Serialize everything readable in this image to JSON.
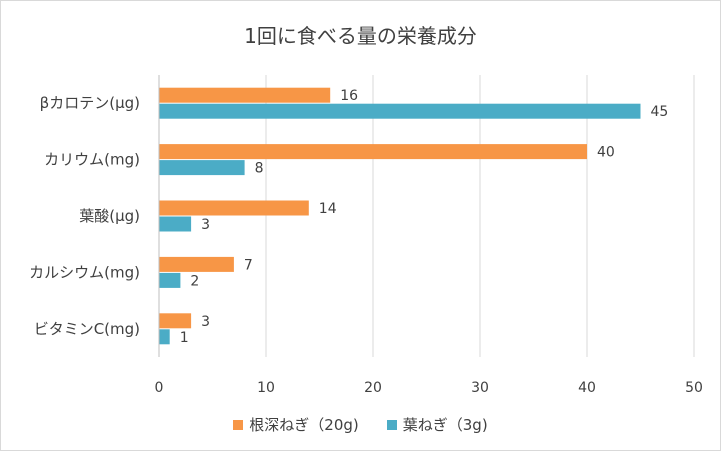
{
  "chart_data": {
    "type": "bar",
    "orientation": "horizontal",
    "title": "1回に食べる量の栄養成分",
    "categories": [
      "βカロテン(μg)",
      "カリウム(mg)",
      "葉酸(μg)",
      "カルシウム(mg)",
      "ビタミンC(mg)"
    ],
    "series": [
      {
        "name": "根深ねぎ（20g)",
        "color": "#f79646",
        "values": [
          16,
          40,
          14,
          7,
          3
        ]
      },
      {
        "name": "葉ねぎ（3g)",
        "color": "#4bacc6",
        "values": [
          45,
          8,
          3,
          2,
          1
        ]
      }
    ],
    "xlim": [
      0,
      50
    ],
    "xticks": [
      0,
      10,
      20,
      30,
      40,
      50
    ],
    "grid": true,
    "data_labels": true,
    "legend_position": "bottom"
  }
}
